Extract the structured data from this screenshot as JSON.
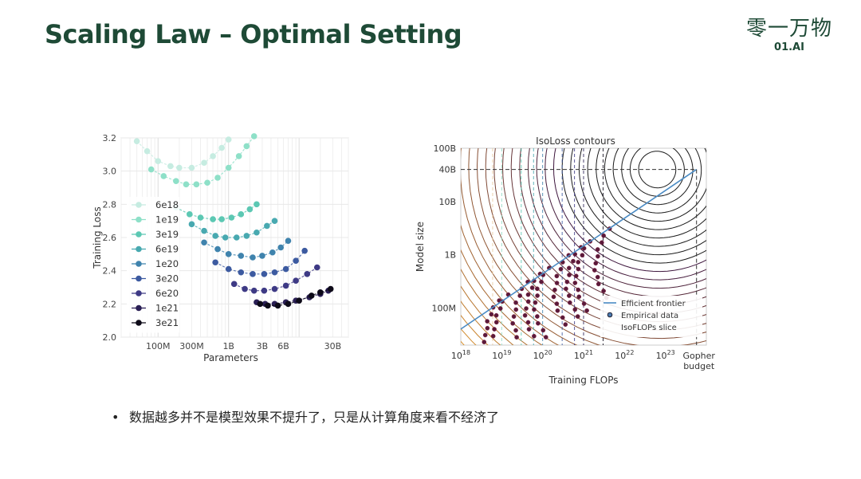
{
  "slide": {
    "title": "Scaling Law – Optimal Setting",
    "logo_cn": "零一万物",
    "logo_en": "01.AI",
    "bullet": "数据越多并不是模型效果不提升了，只是从计算角度来看不经济了"
  },
  "chart_data": [
    {
      "type": "scatter",
      "title": "",
      "xlabel": "Parameters",
      "ylabel": "Training Loss",
      "x_scale": "log",
      "ylim": [
        2.0,
        3.2
      ],
      "xlim_params": [
        30000000.0,
        50000000000.0
      ],
      "x_ticks": [
        {
          "label": "100M",
          "value": 100000000.0
        },
        {
          "label": "300M",
          "value": 300000000.0
        },
        {
          "label": "1B",
          "value": 1000000000.0
        },
        {
          "label": "3B",
          "value": 3000000000.0
        },
        {
          "label": "6B",
          "value": 6000000000.0
        },
        {
          "label": "30B",
          "value": 30000000000.0
        }
      ],
      "y_ticks": [
        "2.0",
        "2.2",
        "2.4",
        "2.6",
        "2.8",
        "3.0",
        "3.2"
      ],
      "grid": true,
      "legend_position": "left",
      "series": [
        {
          "name": "6e18",
          "color": "#c6ece1",
          "points": [
            [
              50000000.0,
              3.18
            ],
            [
              70000000.0,
              3.12
            ],
            [
              100000000.0,
              3.06
            ],
            [
              150000000.0,
              3.03
            ],
            [
              200000000.0,
              3.02
            ],
            [
              300000000.0,
              3.02
            ],
            [
              450000000.0,
              3.05
            ],
            [
              600000000.0,
              3.09
            ],
            [
              800000000.0,
              3.14
            ],
            [
              1000000000.0,
              3.19
            ]
          ]
        },
        {
          "name": "1e19",
          "color": "#8ee0c8",
          "points": [
            [
              80000000.0,
              3.01
            ],
            [
              120000000.0,
              2.97
            ],
            [
              180000000.0,
              2.94
            ],
            [
              250000000.0,
              2.92
            ],
            [
              350000000.0,
              2.92
            ],
            [
              500000000.0,
              2.93
            ],
            [
              700000000.0,
              2.96
            ],
            [
              1000000000.0,
              3.02
            ],
            [
              1400000000.0,
              3.09
            ],
            [
              1800000000.0,
              3.15
            ],
            [
              2300000000.0,
              3.21
            ]
          ]
        },
        {
          "name": "3e19",
          "color": "#5cc8b3",
          "points": [
            [
              180000000.0,
              2.78
            ],
            [
              280000000.0,
              2.74
            ],
            [
              400000000.0,
              2.72
            ],
            [
              600000000.0,
              2.71
            ],
            [
              800000000.0,
              2.71
            ],
            [
              1100000000.0,
              2.72
            ],
            [
              1500000000.0,
              2.74
            ],
            [
              2000000000.0,
              2.77
            ],
            [
              2500000000.0,
              2.8
            ]
          ]
        },
        {
          "name": "6e19",
          "color": "#48a9b0",
          "points": [
            [
              300000000.0,
              2.68
            ],
            [
              450000000.0,
              2.64
            ],
            [
              650000000.0,
              2.61
            ],
            [
              900000000.0,
              2.6
            ],
            [
              1300000000.0,
              2.6
            ],
            [
              1800000000.0,
              2.61
            ],
            [
              2500000000.0,
              2.63
            ],
            [
              3500000000.0,
              2.67
            ],
            [
              4500000000.0,
              2.7
            ]
          ]
        },
        {
          "name": "1e20",
          "color": "#3f83ad",
          "points": [
            [
              450000000.0,
              2.57
            ],
            [
              700000000.0,
              2.53
            ],
            [
              1000000000.0,
              2.5
            ],
            [
              1500000000.0,
              2.49
            ],
            [
              2200000000.0,
              2.48
            ],
            [
              3000000000.0,
              2.49
            ],
            [
              4200000000.0,
              2.51
            ],
            [
              5500000000.0,
              2.54
            ],
            [
              7000000000.0,
              2.58
            ]
          ]
        },
        {
          "name": "3e20",
          "color": "#3c5aa0",
          "points": [
            [
              650000000.0,
              2.45
            ],
            [
              1000000000.0,
              2.41
            ],
            [
              1500000000.0,
              2.39
            ],
            [
              2200000000.0,
              2.38
            ],
            [
              3200000000.0,
              2.38
            ],
            [
              4500000000.0,
              2.39
            ],
            [
              6500000000.0,
              2.41
            ],
            [
              9000000000.0,
              2.46
            ],
            [
              12000000000.0,
              2.52
            ]
          ]
        },
        {
          "name": "6e20",
          "color": "#3e3a85",
          "points": [
            [
              1200000000.0,
              2.32
            ],
            [
              1700000000.0,
              2.29
            ],
            [
              2300000000.0,
              2.28
            ],
            [
              3200000000.0,
              2.28
            ],
            [
              4500000000.0,
              2.29
            ],
            [
              6500000000.0,
              2.31
            ],
            [
              9000000000.0,
              2.34
            ],
            [
              13000000000.0,
              2.38
            ],
            [
              18000000000.0,
              2.42
            ]
          ]
        },
        {
          "name": "1e21",
          "color": "#2a1f55",
          "points": [
            [
              2500000000.0,
              2.21
            ],
            [
              3300000000.0,
              2.2
            ],
            [
              4500000000.0,
              2.2
            ],
            [
              6500000000.0,
              2.21
            ],
            [
              9000000000.0,
              2.22
            ],
            [
              14000000000.0,
              2.24
            ],
            [
              20000000000.0,
              2.26
            ],
            [
              26000000000.0,
              2.28
            ]
          ]
        },
        {
          "name": "3e21",
          "color": "#0d0a18",
          "points": [
            [
              2800000000.0,
              2.2
            ],
            [
              3600000000.0,
              2.19
            ],
            [
              5000000000.0,
              2.19
            ],
            [
              7000000000.0,
              2.2
            ],
            [
              10000000000.0,
              2.22
            ],
            [
              15000000000.0,
              2.25
            ],
            [
              20000000000.0,
              2.27
            ],
            [
              28000000000.0,
              2.29
            ]
          ]
        }
      ]
    },
    {
      "type": "scatter",
      "title": "IsoLoss contours",
      "xlabel": "Training FLOPs",
      "ylabel": "Model size",
      "x_scale": "log",
      "y_scale": "log",
      "xlim": [
        1e+18,
        1e+24
      ],
      "ylim": [
        20000000.0,
        100000000000.0
      ],
      "x_ticks": [
        {
          "label": "10",
          "sup": "18",
          "value": 1e+18
        },
        {
          "label": "10",
          "sup": "19",
          "value": 1e+19
        },
        {
          "label": "10",
          "sup": "20",
          "value": 1e+20
        },
        {
          "label": "10",
          "sup": "21",
          "value": 1e+21
        },
        {
          "label": "10",
          "sup": "22",
          "value": 1e+22
        },
        {
          "label": "10",
          "sup": "23",
          "value": 1e+23
        }
      ],
      "gopher_label_1": "Gopher",
      "gopher_label_2": "budget",
      "gopher_flops": 5.76e+23,
      "y_ticks": [
        {
          "label": "100M",
          "value": 100000000.0
        },
        {
          "label": "1B",
          "value": 1000000000.0
        },
        {
          "label": "10B",
          "value": 10000000000.0
        },
        {
          "label": "40B",
          "value": 40000000000.0
        },
        {
          "label": "100B",
          "value": 100000000000.0
        }
      ],
      "legend": [
        "Efficient frontier",
        "Empirical data",
        "IsoFLOPs slice"
      ],
      "legend_position": "bottom-right",
      "frontier": [
        [
          1e+18,
          40000000.0
        ],
        [
          5.76e+23,
          40000000000.0
        ]
      ],
      "isoflop_slices": [
        6e+18,
        1e+19,
        3e+19,
        6e+19,
        1e+20,
        3e+20,
        6e+20,
        1e+21,
        3e+21
      ],
      "colors": {
        "frontier": "#4a8bc4",
        "dashed_target": "#333333"
      }
    }
  ]
}
